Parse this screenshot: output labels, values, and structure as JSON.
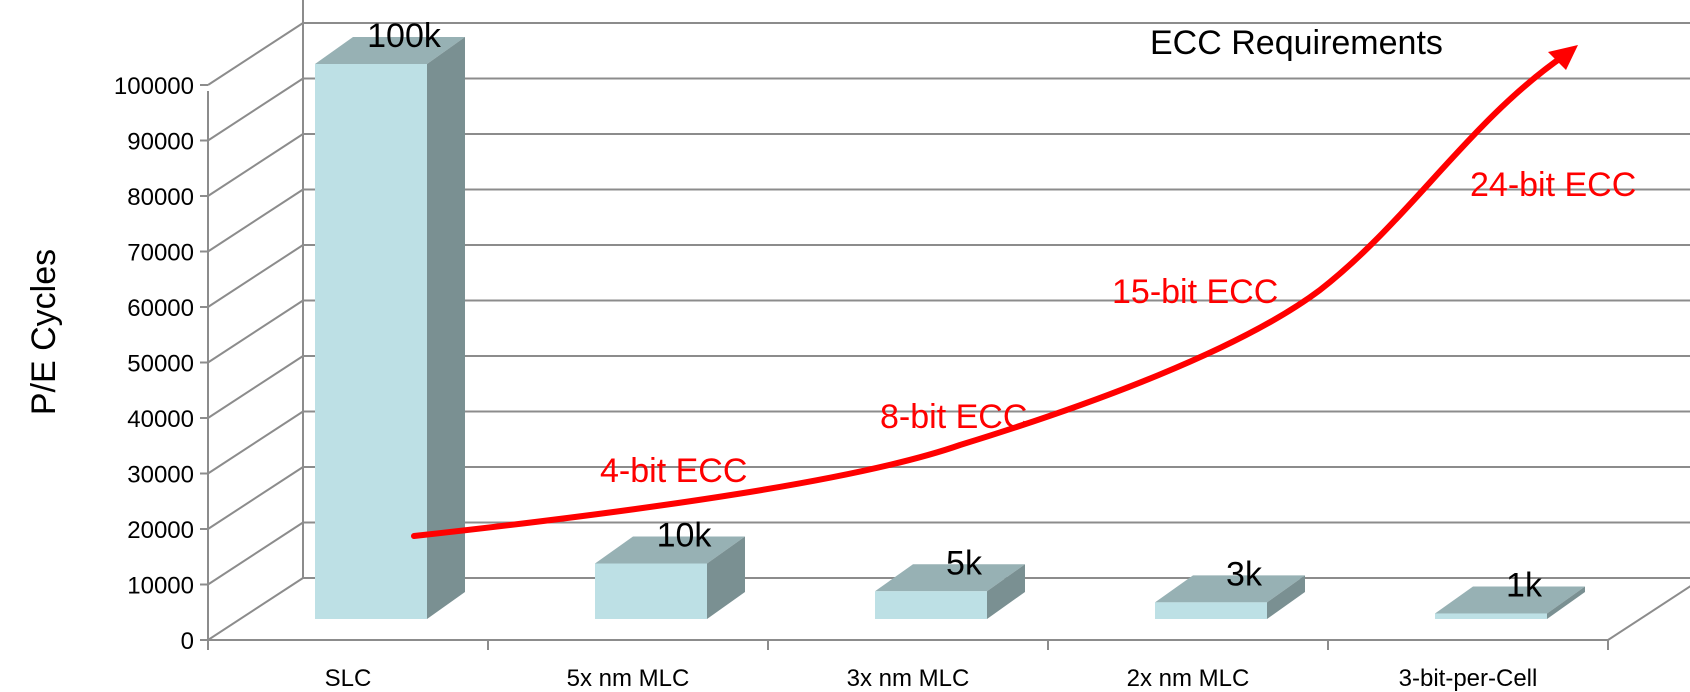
{
  "chart_data": {
    "type": "bar",
    "categories": [
      "SLC",
      "5x nm MLC",
      "3x nm MLC",
      "2x nm MLC",
      "3-bit-per-Cell"
    ],
    "values": [
      100000,
      10000,
      5000,
      3000,
      1000
    ],
    "data_labels": [
      "100k",
      "10k",
      "5k",
      "3k",
      "1k"
    ],
    "ylabel": "P/E Cycles",
    "xlabel": "",
    "ylim": [
      0,
      100000
    ],
    "yticks": [
      0,
      10000,
      20000,
      30000,
      40000,
      50000,
      60000,
      70000,
      80000,
      90000,
      100000
    ],
    "grid": true,
    "style": "3d-column",
    "colors": {
      "bar_front": "#bde0e5",
      "bar_top": "#97b1b4",
      "bar_side": "#7a9092",
      "grid": "#8c8c8c",
      "trend": "#ff0000"
    },
    "trend_annotation": {
      "title": "ECC Requirements",
      "labels": [
        "4-bit ECC",
        "8-bit ECC",
        "15-bit ECC",
        "24-bit ECC"
      ]
    }
  }
}
